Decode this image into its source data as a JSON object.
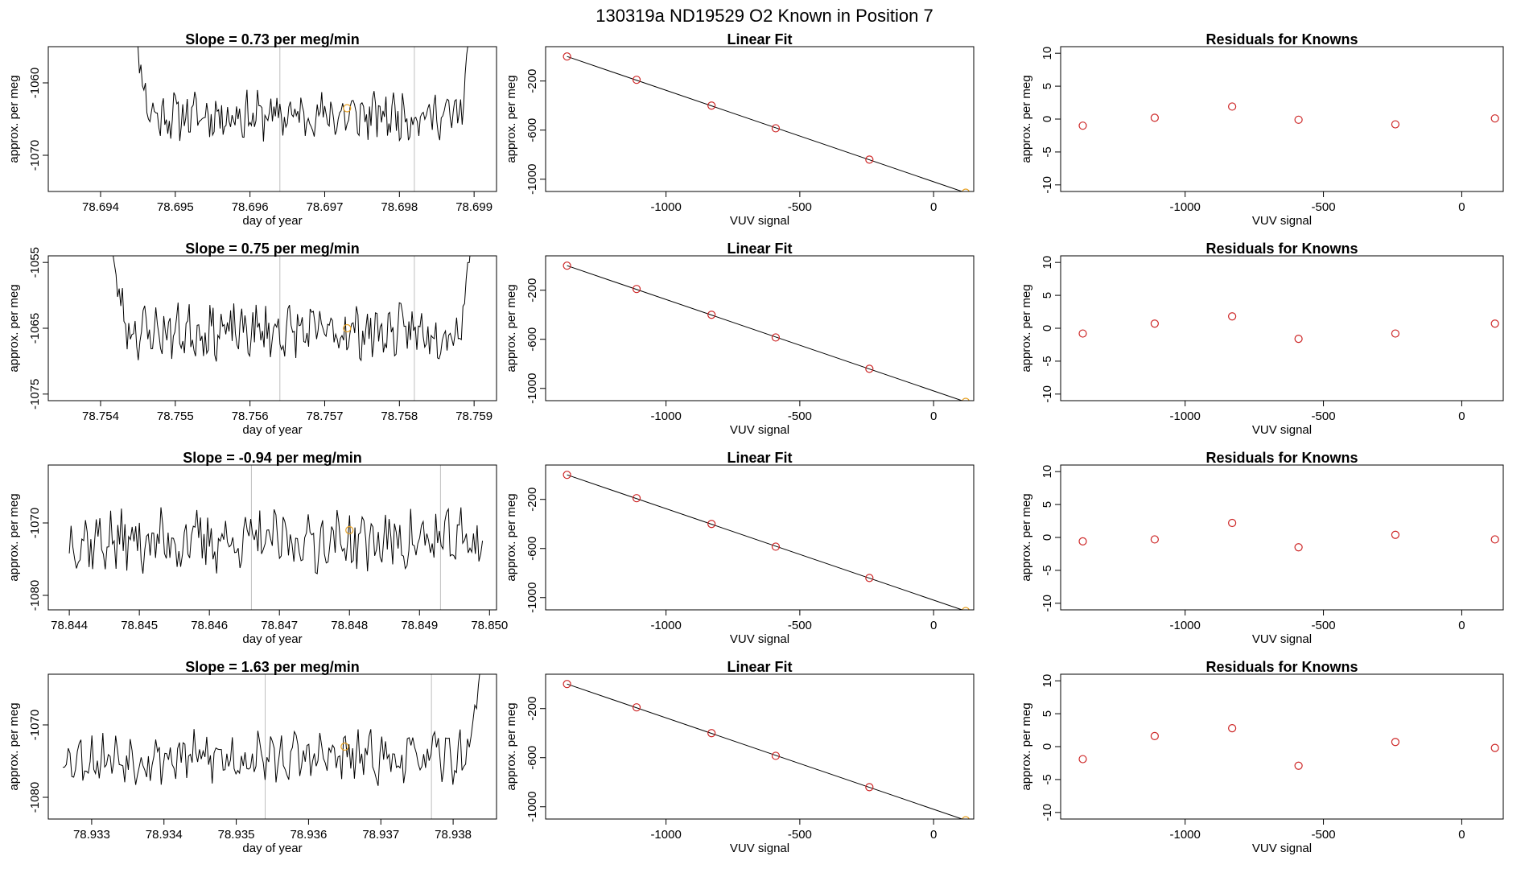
{
  "figure_title": "130319a      ND19529    O2 Known in Position  7",
  "colors": {
    "line": "#000000",
    "vline": "#bebebe",
    "point": "#cd2626",
    "known": "#e8a020",
    "axis": "#000000"
  },
  "chart_data": [
    {
      "row": 0,
      "type": "line",
      "title": "Slope =  0.73  per meg/min",
      "xlabel": "day of year",
      "ylabel": "approx. per meg",
      "xlim": [
        78.6933,
        78.6993
      ],
      "ylim": [
        -1075,
        -1055
      ],
      "xticks": [
        "78.694",
        "78.695",
        "78.696",
        "78.697",
        "78.698",
        "78.699"
      ],
      "xtick_values": [
        78.694,
        78.695,
        78.696,
        78.697,
        78.698,
        78.699
      ],
      "yticks": [
        "-1060",
        "-1070"
      ],
      "ytick_values": [
        -1060,
        -1070
      ],
      "x_start": 78.6944,
      "x_end": 78.699,
      "vlines": [
        78.6964,
        78.6982
      ],
      "known_point": [
        78.6973,
        -1063.5
      ],
      "series_seed": 11,
      "series_center": -1064.5,
      "series_amp": 2.6,
      "rise_left": -1045,
      "rise_right": -1045
    },
    {
      "row": 0,
      "type": "scatter",
      "title": "Linear Fit",
      "xlabel": "VUV signal",
      "ylabel": "approx. per meg",
      "xlim": [
        -1450,
        150
      ],
      "ylim": [
        -1100,
        80
      ],
      "xticks": [
        "-1000",
        "-500",
        "0"
      ],
      "xtick_values": [
        -1000,
        -500,
        0
      ],
      "yticks": [
        "-200",
        "-600",
        "-1000"
      ],
      "ytick_values": [
        -200,
        -600,
        -1000
      ],
      "x": [
        -1370,
        -1110,
        -830,
        -590,
        -240,
        120
      ],
      "y": [
        0,
        -190,
        -400,
        -585,
        -840,
        -1110
      ],
      "fit_line": [
        [
          -1370,
          0
        ],
        [
          120,
          -1110
        ]
      ]
    },
    {
      "row": 0,
      "type": "scatter",
      "title": "Residuals for Knowns",
      "xlabel": "VUV signal",
      "ylabel": "approx. per meg",
      "xlim": [
        -1450,
        150
      ],
      "ylim": [
        -11,
        11
      ],
      "xticks": [
        "-1000",
        "-500",
        "0"
      ],
      "xtick_values": [
        -1000,
        -500,
        0
      ],
      "yticks": [
        "10",
        "5",
        "0",
        "-5",
        "-10"
      ],
      "ytick_values": [
        10,
        5,
        0,
        -5,
        -10
      ],
      "x": [
        -1370,
        -1110,
        -830,
        -590,
        -240,
        120
      ],
      "y": [
        -1.0,
        0.2,
        1.9,
        -0.1,
        -0.8,
        0.1
      ]
    },
    {
      "row": 1,
      "type": "line",
      "title": "Slope =  0.75  per meg/min",
      "xlabel": "day of year",
      "ylabel": "approx. per meg",
      "xlim": [
        78.7533,
        78.7593
      ],
      "ylim": [
        -1076,
        -1054
      ],
      "xticks": [
        "78.754",
        "78.755",
        "78.756",
        "78.757",
        "78.758",
        "78.759"
      ],
      "xtick_values": [
        78.754,
        78.755,
        78.756,
        78.757,
        78.758,
        78.759
      ],
      "yticks": [
        "-1055",
        "-1065",
        "-1075"
      ],
      "ytick_values": [
        -1055,
        -1065,
        -1075
      ],
      "x_start": 78.7541,
      "x_end": 78.759,
      "vlines": [
        78.7564,
        78.7582
      ],
      "known_point": [
        78.7573,
        -1065
      ],
      "series_seed": 23,
      "series_center": -1065.5,
      "series_amp": 3.2,
      "rise_left": -1048,
      "rise_right": -1045
    },
    {
      "row": 1,
      "type": "scatter",
      "title": "Linear Fit",
      "xlabel": "VUV signal",
      "ylabel": "approx. per meg",
      "xlim": [
        -1450,
        150
      ],
      "ylim": [
        -1100,
        80
      ],
      "xticks": [
        "-1000",
        "-500",
        "0"
      ],
      "xtick_values": [
        -1000,
        -500,
        0
      ],
      "yticks": [
        "-200",
        "-600",
        "-1000"
      ],
      "ytick_values": [
        -200,
        -600,
        -1000
      ],
      "x": [
        -1370,
        -1110,
        -830,
        -590,
        -240,
        120
      ],
      "y": [
        0,
        -190,
        -400,
        -585,
        -840,
        -1110
      ],
      "fit_line": [
        [
          -1370,
          0
        ],
        [
          120,
          -1110
        ]
      ]
    },
    {
      "row": 1,
      "type": "scatter",
      "title": "Residuals for Knowns",
      "xlabel": "VUV signal",
      "ylabel": "approx. per meg",
      "xlim": [
        -1450,
        150
      ],
      "ylim": [
        -11,
        11
      ],
      "xticks": [
        "-1000",
        "-500",
        "0"
      ],
      "xtick_values": [
        -1000,
        -500,
        0
      ],
      "yticks": [
        "10",
        "5",
        "0",
        "-5",
        "-10"
      ],
      "ytick_values": [
        10,
        5,
        0,
        -5,
        -10
      ],
      "x": [
        -1370,
        -1110,
        -830,
        -590,
        -240,
        120
      ],
      "y": [
        -0.8,
        0.7,
        1.8,
        -1.6,
        -0.8,
        0.7
      ]
    },
    {
      "row": 2,
      "type": "line",
      "title": "Slope =  -0.94  per meg/min",
      "xlabel": "day of year",
      "ylabel": "approx. per meg",
      "xlim": [
        78.8437,
        78.8501
      ],
      "ylim": [
        -1082,
        -1062
      ],
      "xticks": [
        "78.844",
        "78.845",
        "78.846",
        "78.847",
        "78.848",
        "78.849",
        "78.850"
      ],
      "xtick_values": [
        78.844,
        78.845,
        78.846,
        78.847,
        78.848,
        78.849,
        78.85
      ],
      "yticks": [
        "-1070",
        "-1080"
      ],
      "ytick_values": [
        -1070,
        -1080
      ],
      "x_start": 78.844,
      "x_end": 78.8499,
      "vlines": [
        78.8466,
        78.8493
      ],
      "known_point": [
        78.848,
        -1071
      ],
      "series_seed": 37,
      "series_center": -1072.5,
      "series_amp": 3.4,
      "rise_left": null,
      "rise_right": null
    },
    {
      "row": 2,
      "type": "scatter",
      "title": "Linear Fit",
      "xlabel": "VUV signal",
      "ylabel": "approx. per meg",
      "xlim": [
        -1450,
        150
      ],
      "ylim": [
        -1100,
        80
      ],
      "xticks": [
        "-1000",
        "-500",
        "0"
      ],
      "xtick_values": [
        -1000,
        -500,
        0
      ],
      "yticks": [
        "-200",
        "-600",
        "-1000"
      ],
      "ytick_values": [
        -200,
        -600,
        -1000
      ],
      "x": [
        -1370,
        -1110,
        -830,
        -590,
        -240,
        120
      ],
      "y": [
        0,
        -190,
        -400,
        -585,
        -840,
        -1110
      ],
      "fit_line": [
        [
          -1370,
          0
        ],
        [
          120,
          -1110
        ]
      ]
    },
    {
      "row": 2,
      "type": "scatter",
      "title": "Residuals for Knowns",
      "xlabel": "VUV signal",
      "ylabel": "approx. per meg",
      "xlim": [
        -1450,
        150
      ],
      "ylim": [
        -11,
        11
      ],
      "xticks": [
        "-1000",
        "-500",
        "0"
      ],
      "xtick_values": [
        -1000,
        -500,
        0
      ],
      "yticks": [
        "10",
        "5",
        "0",
        "-5",
        "-10"
      ],
      "ytick_values": [
        10,
        5,
        0,
        -5,
        -10
      ],
      "x": [
        -1370,
        -1110,
        -830,
        -590,
        -240,
        120
      ],
      "y": [
        -0.6,
        -0.3,
        2.2,
        -1.5,
        0.4,
        -0.3
      ]
    },
    {
      "row": 3,
      "type": "line",
      "title": "Slope =  1.63  per meg/min",
      "xlabel": "day of year",
      "ylabel": "approx. per meg",
      "xlim": [
        78.9324,
        78.9386
      ],
      "ylim": [
        -1083,
        -1063
      ],
      "xticks": [
        "78.933",
        "78.934",
        "78.935",
        "78.936",
        "78.937",
        "78.938"
      ],
      "xtick_values": [
        78.933,
        78.934,
        78.935,
        78.936,
        78.937,
        78.938
      ],
      "yticks": [
        "-1070",
        "-1080"
      ],
      "ytick_values": [
        -1070,
        -1080
      ],
      "x_start": 78.9326,
      "x_end": 78.9384,
      "vlines": [
        78.9354,
        78.9377
      ],
      "known_point": [
        78.9365,
        -1073
      ],
      "series_seed": 53,
      "series_center": -1074.5,
      "series_amp": 2.8,
      "rise_left": null,
      "rise_right": -1060
    },
    {
      "row": 3,
      "type": "scatter",
      "title": "Linear Fit",
      "xlabel": "VUV signal",
      "ylabel": "approx. per meg",
      "xlim": [
        -1450,
        150
      ],
      "ylim": [
        -1100,
        80
      ],
      "xticks": [
        "-1000",
        "-500",
        "0"
      ],
      "xtick_values": [
        -1000,
        -500,
        0
      ],
      "yticks": [
        "-200",
        "-600",
        "-1000"
      ],
      "ytick_values": [
        -200,
        -600,
        -1000
      ],
      "x": [
        -1370,
        -1110,
        -830,
        -590,
        -240,
        120
      ],
      "y": [
        0,
        -190,
        -400,
        -585,
        -840,
        -1110
      ],
      "fit_line": [
        [
          -1370,
          0
        ],
        [
          120,
          -1110
        ]
      ]
    },
    {
      "row": 3,
      "type": "scatter",
      "title": "Residuals for Knowns",
      "xlabel": "VUV signal",
      "ylabel": "approx. per meg",
      "xlim": [
        -1450,
        150
      ],
      "ylim": [
        -11,
        11
      ],
      "xticks": [
        "-1000",
        "-500",
        "0"
      ],
      "xtick_values": [
        -1000,
        -500,
        0
      ],
      "yticks": [
        "10",
        "5",
        "0",
        "-5",
        "-10"
      ],
      "ytick_values": [
        10,
        5,
        0,
        -5,
        -10
      ],
      "x": [
        -1370,
        -1110,
        -830,
        -590,
        -240,
        120
      ],
      "y": [
        -1.9,
        1.6,
        2.8,
        -2.9,
        0.7,
        -0.2
      ]
    }
  ]
}
